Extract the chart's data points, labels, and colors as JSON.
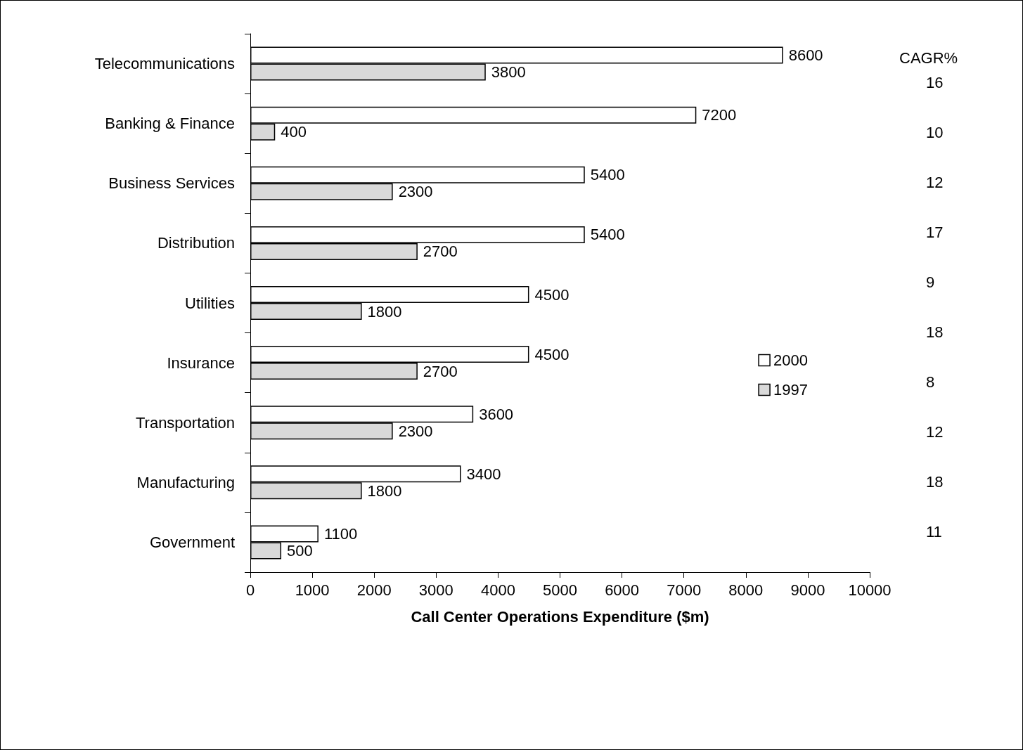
{
  "chart_data": {
    "type": "bar",
    "orientation": "horizontal",
    "xlabel": "Call Center Operations Expenditure ($m)",
    "categories": [
      "Telecommunications",
      "Banking & Finance",
      "Business Services",
      "Distribution",
      "Utilities",
      "Insurance",
      "Transportation",
      "Manufacturing",
      "Government"
    ],
    "series": [
      {
        "name": "2000",
        "color": "#ffffff",
        "values": [
          8600,
          7200,
          5400,
          5400,
          4500,
          4500,
          3600,
          3400,
          1100
        ]
      },
      {
        "name": "1997",
        "color": "#d9d9d9",
        "values": [
          3800,
          400,
          2300,
          2700,
          1800,
          2700,
          2300,
          1800,
          500
        ]
      }
    ],
    "xlim": [
      0,
      10000
    ],
    "xticks": [
      0,
      1000,
      2000,
      3000,
      4000,
      5000,
      6000,
      7000,
      8000,
      9000,
      10000
    ],
    "data_labels": true,
    "grid": false,
    "legend": "right",
    "annotations": [
      "CAGR%",
      "16",
      "10",
      "12",
      "17",
      "9",
      "18",
      "8",
      "12",
      "18",
      "11"
    ]
  }
}
